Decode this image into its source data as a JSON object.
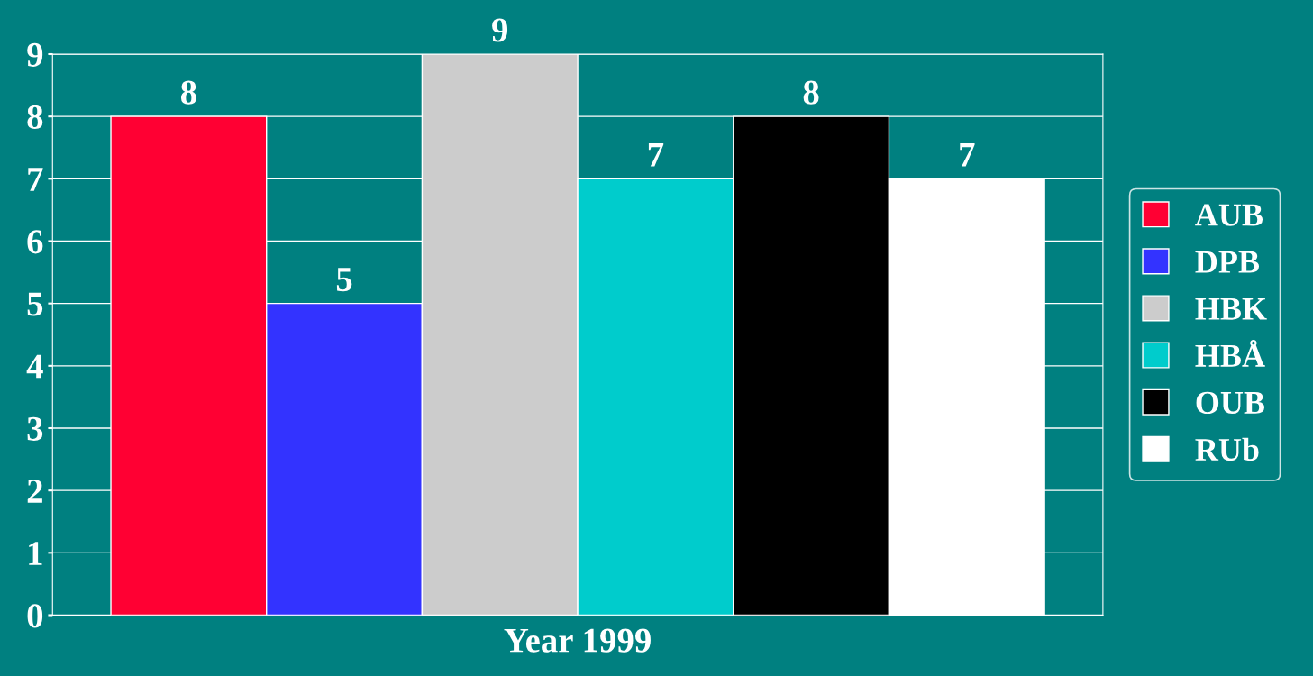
{
  "chart_data": {
    "type": "bar",
    "categories": [
      "Year 1999"
    ],
    "series": [
      {
        "name": "AUB",
        "color": "#ff0033",
        "values": [
          8
        ]
      },
      {
        "name": "DPB",
        "color": "#3333ff",
        "values": [
          5
        ]
      },
      {
        "name": "HBK",
        "color": "#cccccc",
        "values": [
          9
        ]
      },
      {
        "name": "HBÅ",
        "color": "#00cccc",
        "values": [
          7
        ]
      },
      {
        "name": "OUB",
        "color": "#000000",
        "values": [
          8
        ]
      },
      {
        "name": "RUb",
        "color": "#ffffff",
        "values": [
          7
        ]
      }
    ],
    "ylim": [
      0,
      9
    ],
    "yticks": [
      0,
      1,
      2,
      3,
      4,
      5,
      6,
      7,
      8,
      9
    ],
    "grid": "y",
    "legend": "right",
    "data_labels": true
  }
}
